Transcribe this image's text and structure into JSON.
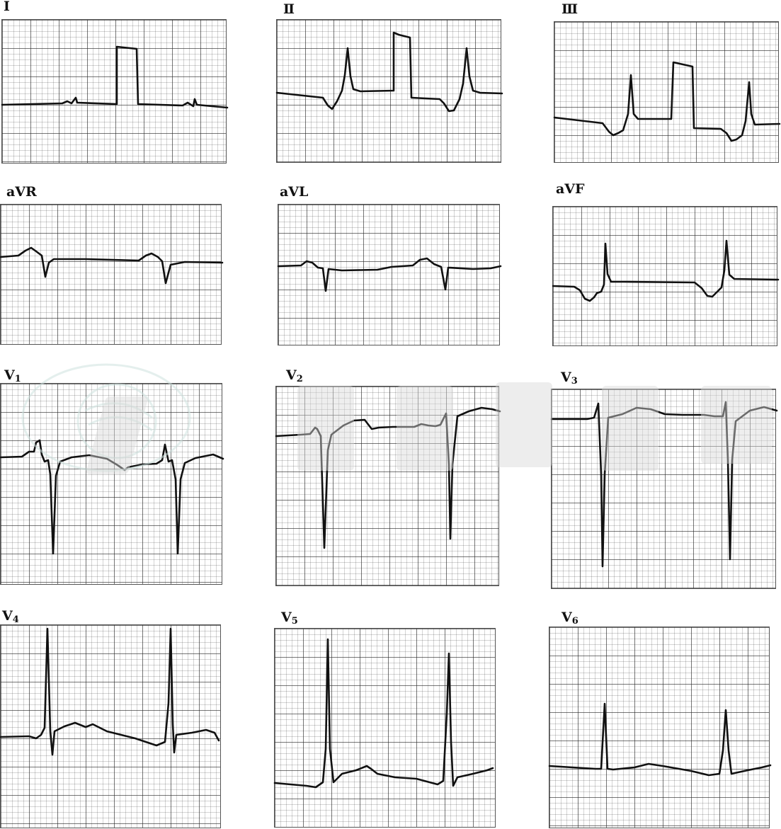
{
  "leads": [
    {
      "id": "I",
      "label": "Ⅰ"
    },
    {
      "id": "II",
      "label": "Ⅱ"
    },
    {
      "id": "III",
      "label": "Ⅲ"
    },
    {
      "id": "aVR",
      "label": "aVR"
    },
    {
      "id": "aVL",
      "label": "aVL"
    },
    {
      "id": "aVF",
      "label": "aVF"
    },
    {
      "id": "V1",
      "label_main": "V",
      "label_sub": "1"
    },
    {
      "id": "V2",
      "label_main": "V",
      "label_sub": "2"
    },
    {
      "id": "V3",
      "label_main": "V",
      "label_sub": "3"
    },
    {
      "id": "V4",
      "label_main": "V",
      "label_sub": "4"
    },
    {
      "id": "V5",
      "label_main": "V",
      "label_sub": "5"
    },
    {
      "id": "V6",
      "label_main": "V",
      "label_sub": "6"
    }
  ],
  "colors": {
    "trace": "#111111",
    "grid_major": "#555555",
    "grid_minor": "#bbbbbb",
    "watermark": "#d6d6d6"
  }
}
